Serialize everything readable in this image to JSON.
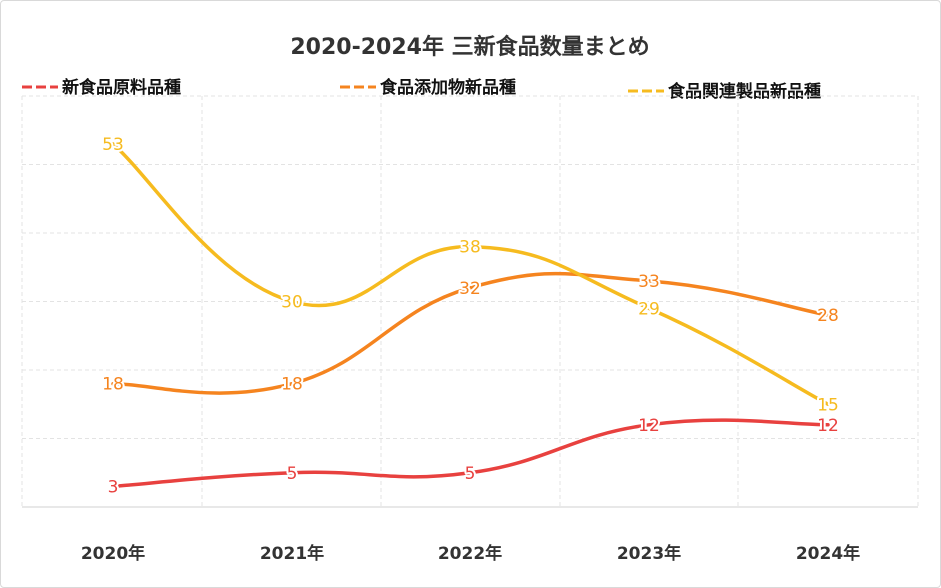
{
  "chart_data": {
    "type": "line",
    "title": "2020-2024年 三新食品数量まとめ",
    "categories": [
      "2020年",
      "2021年",
      "2022年",
      "2023年",
      "2024年"
    ],
    "ylim": [
      0,
      60
    ],
    "grid": true,
    "legend_position": "top",
    "series": [
      {
        "name": "新食品原料品種",
        "color": "#e8413f",
        "values": [
          3,
          5,
          5,
          12,
          12
        ]
      },
      {
        "name": "食品添加物新品種",
        "color": "#f5841f",
        "values": [
          18,
          18,
          32,
          33,
          28
        ]
      },
      {
        "name": "食品関連製品新品種",
        "color": "#f6bb1f",
        "values": [
          53,
          30,
          38,
          29,
          15
        ]
      }
    ]
  }
}
